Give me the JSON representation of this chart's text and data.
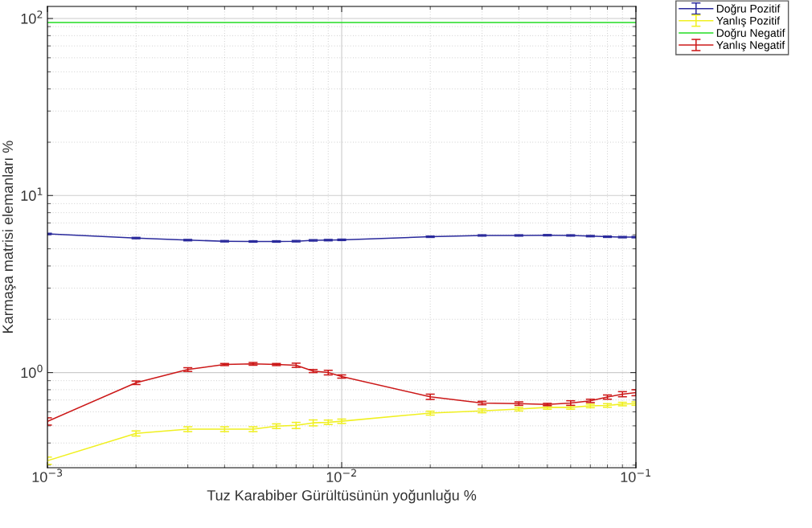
{
  "chart_data": {
    "type": "line",
    "xlabel": "Tuz Karabiber Gürültüsünün yoğunluğu %",
    "ylabel": "Karmaşa matrisi elemanları %",
    "x": [
      0.001,
      0.002,
      0.003,
      0.004,
      0.005,
      0.006,
      0.007,
      0.008,
      0.009,
      0.01,
      0.02,
      0.03,
      0.04,
      0.05,
      0.06,
      0.07,
      0.08,
      0.09,
      0.1
    ],
    "series": [
      {
        "name": "Doğru Pozitif",
        "color": "#2a2a9c",
        "values": [
          6.07,
          5.75,
          5.6,
          5.52,
          5.5,
          5.5,
          5.52,
          5.58,
          5.6,
          5.62,
          5.85,
          5.95,
          5.95,
          5.97,
          5.95,
          5.9,
          5.85,
          5.82,
          5.82
        ],
        "errors": [
          0.05,
          0.05,
          0.05,
          0.05,
          0.05,
          0.05,
          0.05,
          0.05,
          0.05,
          0.05,
          0.05,
          0.05,
          0.05,
          0.05,
          0.05,
          0.05,
          0.05,
          0.05,
          0.05
        ]
      },
      {
        "name": "Yanlış Pozitif",
        "color": "#f0f020",
        "values": [
          0.318,
          0.453,
          0.479,
          0.479,
          0.479,
          0.498,
          0.503,
          0.52,
          0.524,
          0.531,
          0.59,
          0.608,
          0.622,
          0.636,
          0.636,
          0.648,
          0.652,
          0.664,
          0.668
        ],
        "errors": [
          0.015,
          0.015,
          0.015,
          0.015,
          0.015,
          0.015,
          0.02,
          0.02,
          0.015,
          0.015,
          0.015,
          0.015,
          0.015,
          0.015,
          0.015,
          0.015,
          0.015,
          0.015,
          0.015
        ]
      },
      {
        "name": "Doğru Negatif",
        "color": "#22dd22",
        "values": [
          95,
          95,
          95,
          95,
          95,
          95,
          95,
          95,
          95,
          95,
          95,
          95,
          95,
          95,
          95,
          95,
          95,
          95,
          95
        ]
      },
      {
        "name": "Yanlış Negatif",
        "color": "#cc1818",
        "values": [
          0.53,
          0.876,
          1.04,
          1.11,
          1.12,
          1.11,
          1.1,
          1.02,
          1.0,
          0.95,
          0.73,
          0.673,
          0.668,
          0.66,
          0.673,
          0.692,
          0.727,
          0.755,
          0.77
        ],
        "errors": [
          0.025,
          0.02,
          0.025,
          0.015,
          0.02,
          0.015,
          0.03,
          0.02,
          0.03,
          0.02,
          0.025,
          0.015,
          0.015,
          0.01,
          0.02,
          0.015,
          0.02,
          0.025,
          0.03
        ]
      }
    ],
    "log": "xy",
    "xlim": [
      0.001,
      0.1
    ],
    "ylim": [
      0.29,
      117
    ],
    "xticks": [
      {
        "value": 0.001,
        "label": "10$^{−3}$"
      },
      {
        "value": 0.01,
        "label": "10$^{−2}$"
      },
      {
        "value": 0.1,
        "label": "10$^{−1}$"
      }
    ],
    "yticks": [
      {
        "value": 1,
        "label": "10$^{0}$"
      },
      {
        "value": 10,
        "label": "10$^{1}$"
      },
      {
        "value": 100,
        "label": "10$^{2}$"
      }
    ],
    "grid": true,
    "legend": "top right",
    "marker": "none",
    "line_style": "solid"
  }
}
